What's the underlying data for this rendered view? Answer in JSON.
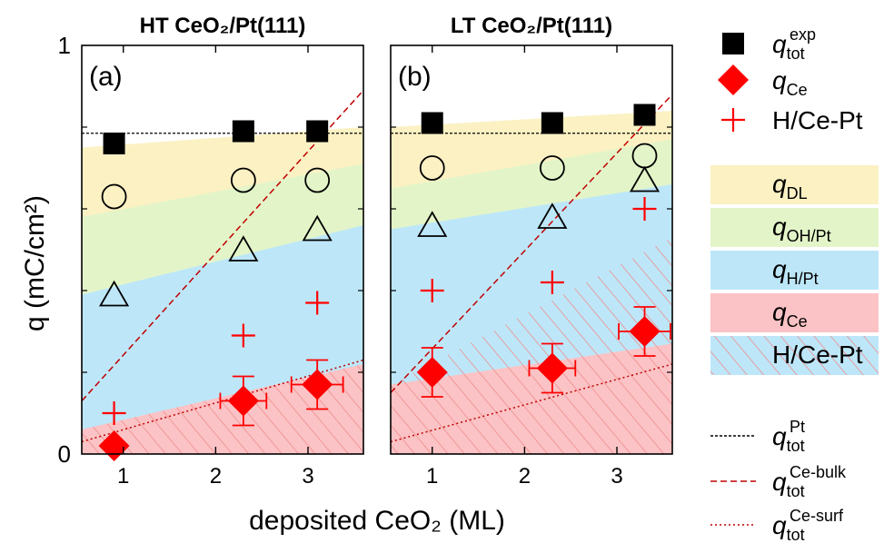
{
  "chart_data": {
    "type": "scatter",
    "ylabel": "q (mC/cm²)",
    "xlabel": "deposited CeO₂ (ML)",
    "ylim": [
      0,
      1
    ],
    "xlim": [
      0.55,
      3.6
    ],
    "y_ticks": [
      "0",
      "1"
    ],
    "x_ticks": [
      "1",
      "2",
      "3"
    ],
    "grid": false,
    "legend_position": "right",
    "colors": {
      "marker_black": "#000000",
      "marker_red": "#ff0000",
      "band_dl": "#fbf1c3",
      "band_ohpt": "#e3f5c8",
      "band_hpt": "#bde7f9",
      "band_ce": "#fbc3c5",
      "hatch": "#f08c8c",
      "dash_pt": "#000000",
      "dash_ce": "#c00000"
    },
    "panels": [
      {
        "title": "HT CeO₂/Pt(111)",
        "label": "(a)",
        "q_tot_exp": [
          [
            0.9,
            0.76
          ],
          [
            2.3,
            0.79
          ],
          [
            3.1,
            0.79
          ]
        ],
        "q_ce": [
          [
            0.9,
            0.02
          ],
          [
            2.3,
            0.13
          ],
          [
            3.1,
            0.17
          ]
        ],
        "q_ce_xerr": [
          0,
          0.25,
          0.28
        ],
        "q_ce_yerr": [
          0,
          0.06,
          0.06
        ],
        "h_ce_pt": [
          [
            0.9,
            0.1
          ],
          [
            2.3,
            0.29
          ],
          [
            3.1,
            0.37
          ]
        ],
        "circles": [
          [
            0.9,
            0.63
          ],
          [
            2.3,
            0.67
          ],
          [
            3.1,
            0.67
          ]
        ],
        "triangles": [
          [
            0.9,
            0.39
          ],
          [
            2.3,
            0.5
          ],
          [
            3.1,
            0.55
          ]
        ],
        "band_tops": {
          "ce": [
            [
              0.55,
              0.06
            ],
            [
              3.6,
              0.22
            ]
          ],
          "hpt": [
            [
              0.55,
              0.39
            ],
            [
              3.6,
              0.56
            ]
          ],
          "ohpt": [
            [
              0.55,
              0.58
            ],
            [
              3.6,
              0.71
            ]
          ],
          "dl": [
            [
              0.55,
              0.75
            ],
            [
              3.6,
              0.8
            ]
          ]
        },
        "hatch_tops": [
          [
            0.55,
            0.06
          ],
          [
            3.6,
            0.22
          ]
        ],
        "q_tot_pt": 0.785,
        "q_tot_ce_bulk": [
          [
            0.55,
            0.13
          ],
          [
            3.6,
            0.89
          ]
        ],
        "q_tot_ce_surf": [
          [
            0.55,
            0.03
          ],
          [
            3.6,
            0.23
          ]
        ]
      },
      {
        "title": "LT CeO₂/Pt(111)",
        "label": "(b)",
        "q_tot_exp": [
          [
            1.0,
            0.81
          ],
          [
            2.3,
            0.81
          ],
          [
            3.3,
            0.83
          ]
        ],
        "q_ce": [
          [
            1.0,
            0.2
          ],
          [
            2.3,
            0.21
          ],
          [
            3.3,
            0.3
          ]
        ],
        "q_ce_xerr": [
          0,
          0.25,
          0.28
        ],
        "q_ce_yerr": [
          0.06,
          0.06,
          0.06
        ],
        "h_ce_pt": [
          [
            1.0,
            0.4
          ],
          [
            2.3,
            0.42
          ],
          [
            3.3,
            0.6
          ]
        ],
        "circles": [
          [
            1.0,
            0.7
          ],
          [
            2.3,
            0.7
          ],
          [
            3.3,
            0.73
          ]
        ],
        "triangles": [
          [
            1.0,
            0.56
          ],
          [
            2.3,
            0.58
          ],
          [
            3.3,
            0.67
          ]
        ],
        "band_tops": {
          "ce": [
            [
              0.55,
              0.17
            ],
            [
              3.6,
              0.27
            ]
          ],
          "hpt": [
            [
              0.55,
              0.55
            ],
            [
              3.6,
              0.66
            ]
          ],
          "ohpt": [
            [
              0.55,
              0.65
            ],
            [
              3.6,
              0.77
            ]
          ],
          "dl": [
            [
              0.55,
              0.8
            ],
            [
              3.6,
              0.84
            ]
          ]
        },
        "hatch_tops": [
          [
            0.55,
            0.17
          ],
          [
            3.6,
            0.53
          ]
        ],
        "q_tot_pt": 0.785,
        "q_tot_ce_bulk": [
          [
            0.55,
            0.15
          ],
          [
            3.6,
            0.88
          ]
        ],
        "q_tot_ce_surf": [
          [
            0.55,
            0.03
          ],
          [
            3.6,
            0.22
          ]
        ]
      }
    ],
    "legend": {
      "markers": [
        {
          "key": "q_tot_exp",
          "label": "q",
          "sup": "exp",
          "sub": "tot"
        },
        {
          "key": "q_ce",
          "label": "q",
          "sup": "",
          "sub": "Ce"
        },
        {
          "key": "h_ce_pt",
          "label": "H/Ce-Pt",
          "sup": "",
          "sub": ""
        }
      ],
      "bands": [
        {
          "key": "dl",
          "label": "q",
          "sub": "DL"
        },
        {
          "key": "ohpt",
          "label": "q",
          "sub": "OH/Pt"
        },
        {
          "key": "hpt",
          "label": "q",
          "sub": "H/Pt"
        },
        {
          "key": "ce",
          "label": "q",
          "sub": "Ce"
        },
        {
          "key": "hatch",
          "label": "H/Ce-Pt",
          "sub": ""
        }
      ],
      "lines": [
        {
          "key": "q_tot_pt",
          "label": "q",
          "sup": "Pt",
          "sub": "tot"
        },
        {
          "key": "q_tot_ce_bulk",
          "label": "q",
          "sup": "Ce-bulk",
          "sub": "tot"
        },
        {
          "key": "q_tot_ce_surf",
          "label": "q",
          "sup": "Ce-surf",
          "sub": "tot"
        }
      ]
    }
  }
}
